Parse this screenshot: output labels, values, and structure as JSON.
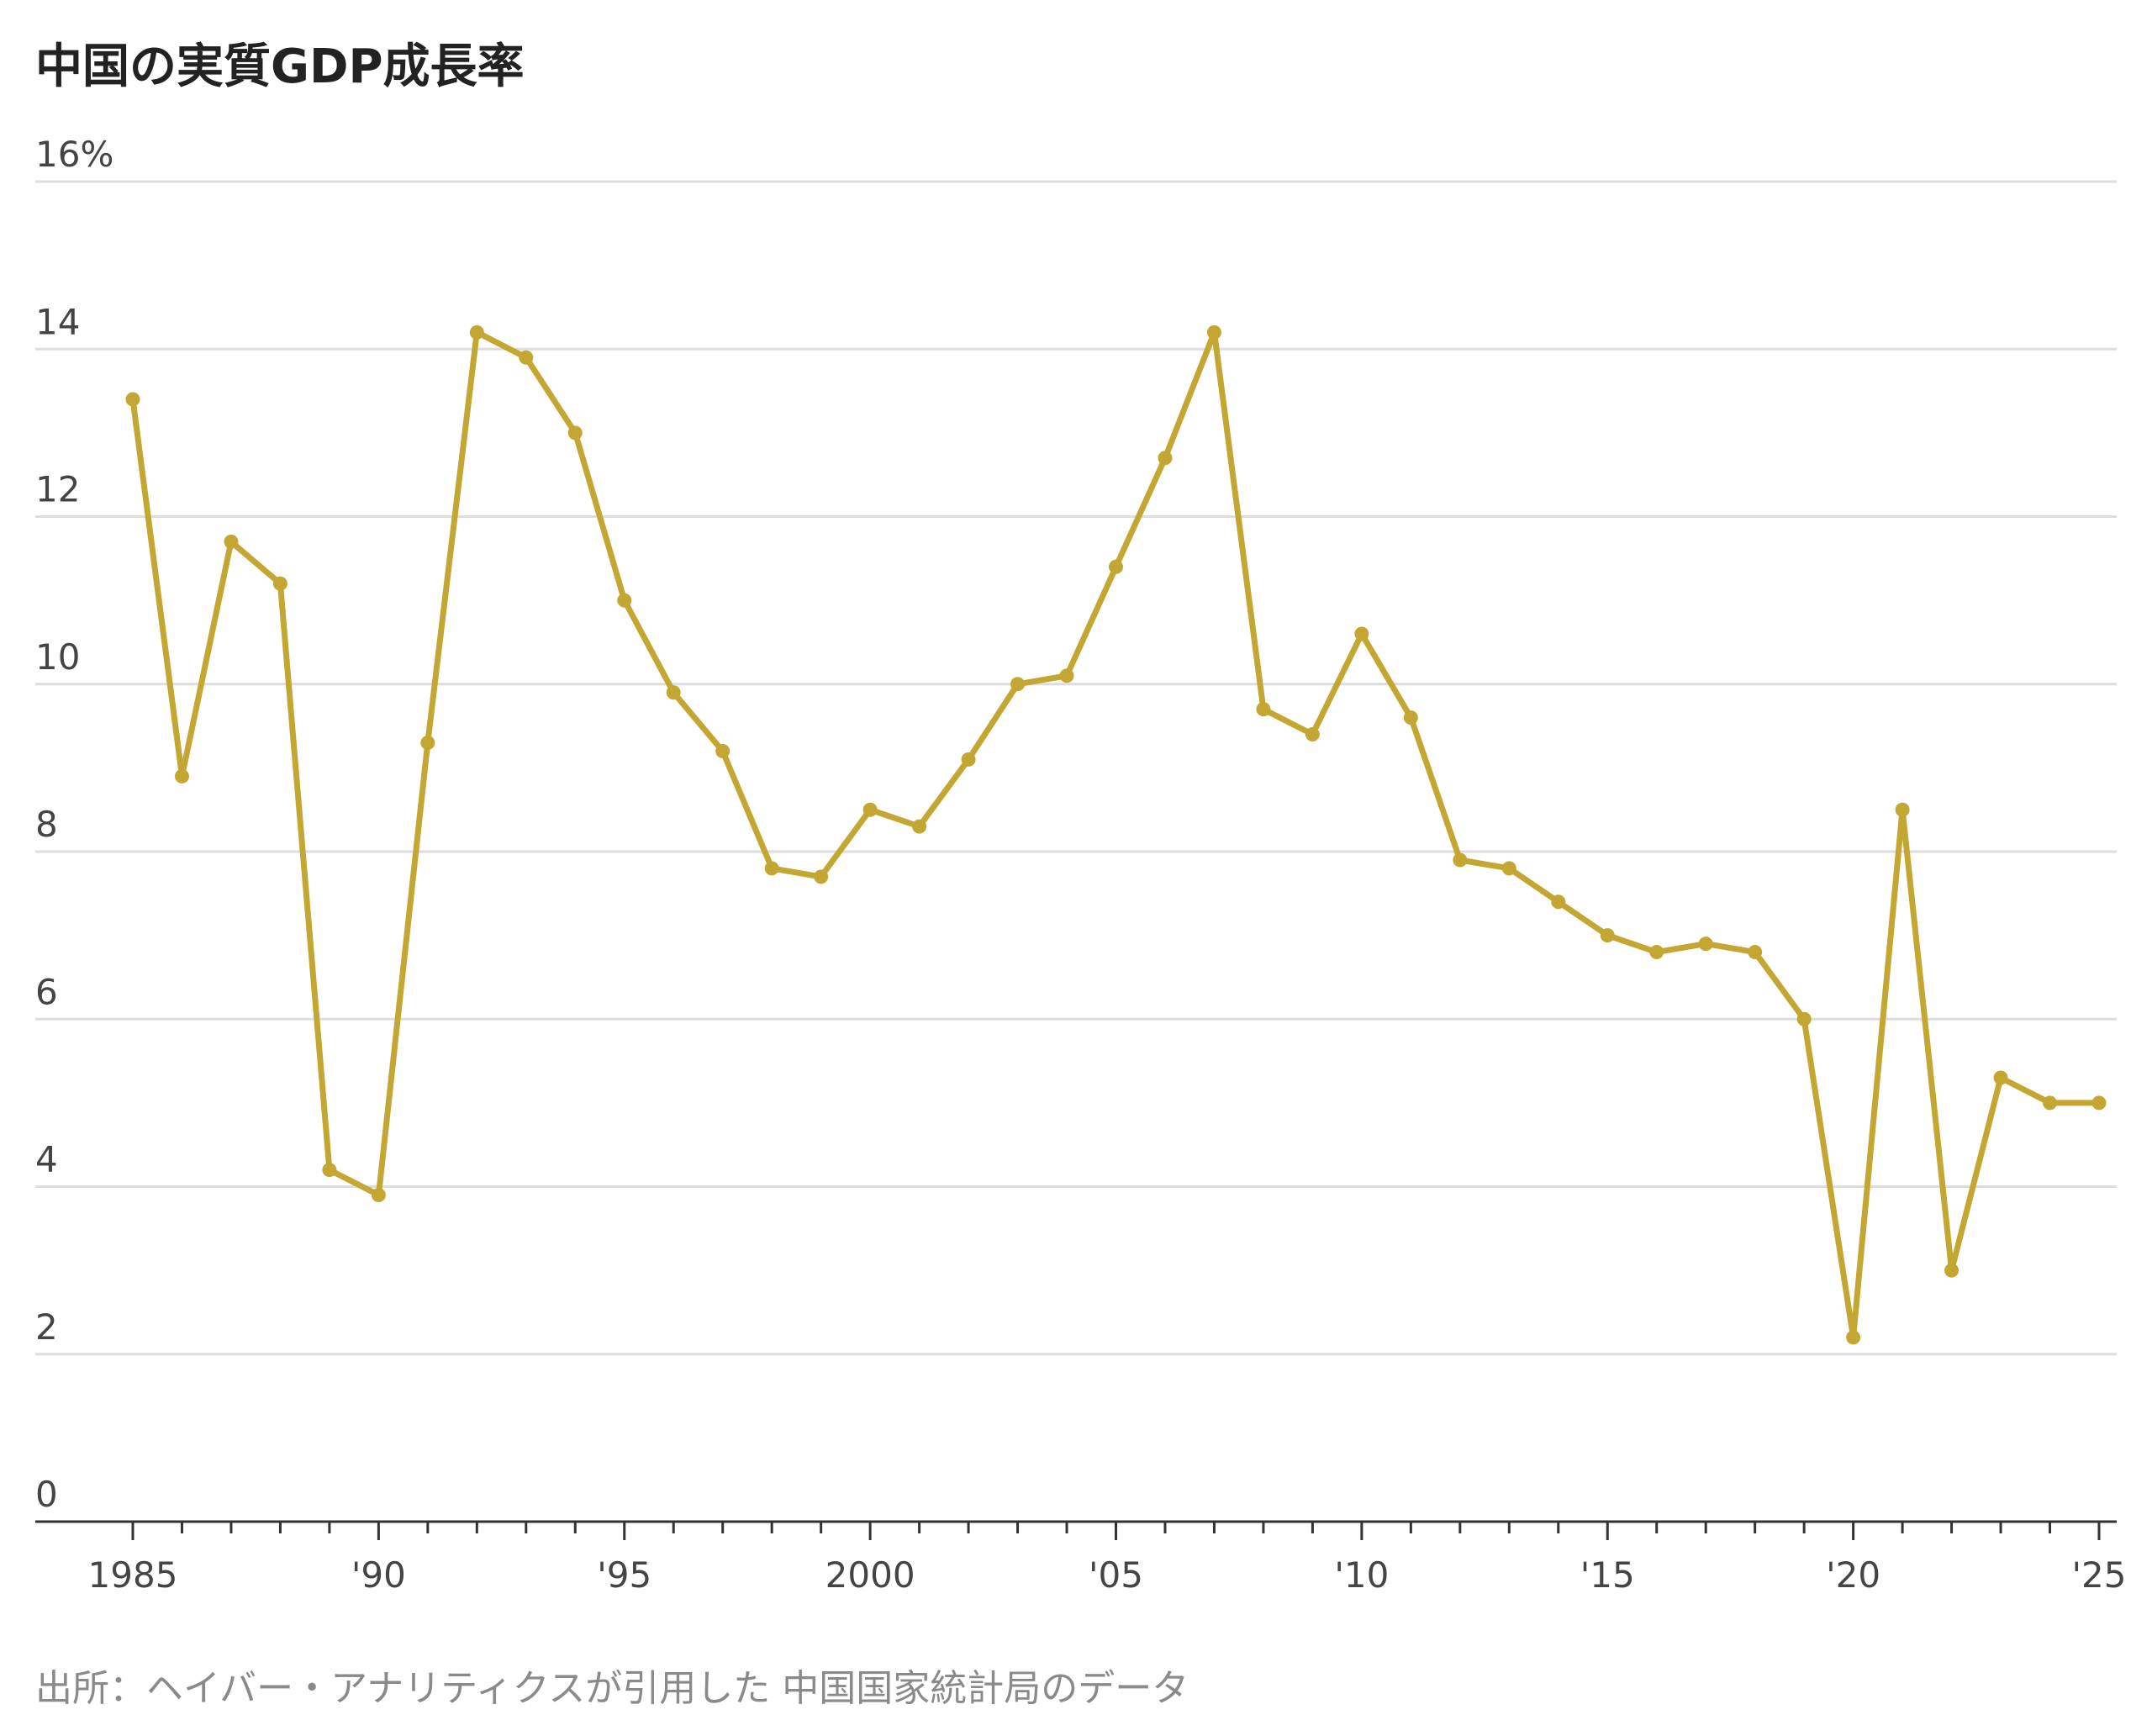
{
  "chart_data": {
    "type": "line",
    "title": "中国の実質GDP成長率",
    "source": "出所：ヘイバー・アナリティクスが引用した 中国国家統計局のデータ",
    "colors": {
      "line": "#c4a732",
      "grid": "#dddddd",
      "axis": "#333333"
    },
    "ylim": [
      0,
      16
    ],
    "yticks": [
      {
        "value": 0,
        "label": "0"
      },
      {
        "value": 2,
        "label": "2"
      },
      {
        "value": 4,
        "label": "4"
      },
      {
        "value": 6,
        "label": "6"
      },
      {
        "value": 8,
        "label": "8"
      },
      {
        "value": 10,
        "label": "10"
      },
      {
        "value": 12,
        "label": "12"
      },
      {
        "value": 14,
        "label": "14"
      },
      {
        "value": 16,
        "label": "16%"
      }
    ],
    "xlim": [
      1985,
      2025
    ],
    "xticks": [
      {
        "value": 1985,
        "label": "1985"
      },
      {
        "value": 1990,
        "label": "'90"
      },
      {
        "value": 1995,
        "label": "'95"
      },
      {
        "value": 2000,
        "label": "2000"
      },
      {
        "value": 2005,
        "label": "'05"
      },
      {
        "value": 2010,
        "label": "'10"
      },
      {
        "value": 2015,
        "label": "'15"
      },
      {
        "value": 2020,
        "label": "'20"
      },
      {
        "value": 2025,
        "label": "'25"
      }
    ],
    "grid": true,
    "series": [
      {
        "x": [
          1985,
          1986,
          1987,
          1988,
          1989,
          1990,
          1991,
          1992,
          1993,
          1994,
          1995,
          1996,
          1997,
          1998,
          1999,
          2000,
          2001,
          2002,
          2003,
          2004,
          2005,
          2006,
          2007,
          2008,
          2009,
          2010,
          2011,
          2012,
          2013,
          2014,
          2015,
          2016,
          2017,
          2018,
          2019,
          2020,
          2021,
          2022,
          2023,
          2024,
          2025
        ],
        "y": [
          13.4,
          8.9,
          11.7,
          11.2,
          4.2,
          3.9,
          9.3,
          14.2,
          13.9,
          13.0,
          11.0,
          9.9,
          9.2,
          7.8,
          7.7,
          8.5,
          8.3,
          9.1,
          10.0,
          10.1,
          11.4,
          12.7,
          14.2,
          9.7,
          9.4,
          10.6,
          9.6,
          7.9,
          7.8,
          7.4,
          7.0,
          6.8,
          6.9,
          6.8,
          6.0,
          2.2,
          8.5,
          3.0,
          5.3,
          5.0,
          5.0
        ]
      }
    ]
  }
}
